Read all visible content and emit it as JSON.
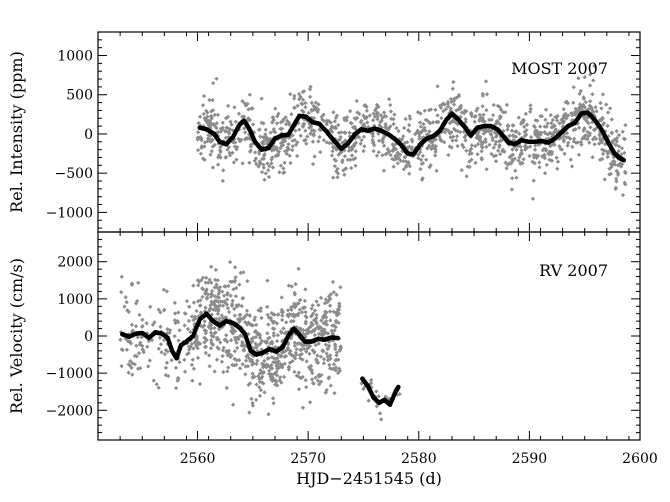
{
  "chart_data": [
    {
      "type": "scatter",
      "annotation": "MOST 2007",
      "ylabel": "Rel. Intensity (ppm)",
      "xlabel": "",
      "xlim": [
        2551,
        2600
      ],
      "ylim": [
        -1250,
        1300
      ],
      "x_ticks": [
        2560,
        2570,
        2580,
        2590,
        2600
      ],
      "y_ticks": [
        -1000,
        -500,
        0,
        500,
        1000
      ],
      "y_tick_labels": [
        "−1000",
        "−500",
        "0",
        "500",
        "1000"
      ],
      "raw_style": {
        "color": "#8c8c8c"
      },
      "smooth_style": {
        "color": "#000000"
      },
      "smooth": [
        [
          2560.2,
          80
        ],
        [
          2560.8,
          60
        ],
        [
          2561.5,
          0
        ],
        [
          2562.0,
          -100
        ],
        [
          2562.6,
          -130
        ],
        [
          2563.2,
          -40
        ],
        [
          2563.8,
          120
        ],
        [
          2564.2,
          170
        ],
        [
          2564.7,
          60
        ],
        [
          2565.2,
          -100
        ],
        [
          2565.8,
          -200
        ],
        [
          2566.4,
          -180
        ],
        [
          2567.0,
          -60
        ],
        [
          2567.6,
          -20
        ],
        [
          2568.2,
          -10
        ],
        [
          2568.7,
          110
        ],
        [
          2569.2,
          230
        ],
        [
          2569.8,
          220
        ],
        [
          2570.4,
          150
        ],
        [
          2571.0,
          130
        ],
        [
          2571.6,
          40
        ],
        [
          2572.3,
          -80
        ],
        [
          2573.0,
          -190
        ],
        [
          2573.6,
          -120
        ],
        [
          2574.2,
          -10
        ],
        [
          2574.8,
          60
        ],
        [
          2575.4,
          40
        ],
        [
          2576.0,
          70
        ],
        [
          2576.6,
          40
        ],
        [
          2577.2,
          0
        ],
        [
          2577.8,
          -60
        ],
        [
          2578.4,
          -140
        ],
        [
          2579.0,
          -250
        ],
        [
          2579.5,
          -260
        ],
        [
          2580.1,
          -140
        ],
        [
          2580.7,
          -60
        ],
        [
          2581.3,
          -30
        ],
        [
          2581.9,
          40
        ],
        [
          2582.5,
          180
        ],
        [
          2583.0,
          260
        ],
        [
          2583.6,
          180
        ],
        [
          2584.2,
          80
        ],
        [
          2584.7,
          -20
        ],
        [
          2585.3,
          80
        ],
        [
          2585.9,
          100
        ],
        [
          2586.5,
          100
        ],
        [
          2587.1,
          60
        ],
        [
          2587.6,
          -20
        ],
        [
          2588.1,
          -110
        ],
        [
          2588.7,
          -130
        ],
        [
          2589.3,
          -80
        ],
        [
          2589.9,
          -100
        ],
        [
          2590.5,
          -100
        ],
        [
          2591.1,
          -90
        ],
        [
          2591.7,
          -110
        ],
        [
          2592.3,
          -60
        ],
        [
          2592.9,
          20
        ],
        [
          2593.5,
          100
        ],
        [
          2594.1,
          140
        ],
        [
          2594.7,
          260
        ],
        [
          2595.3,
          270
        ],
        [
          2595.9,
          180
        ],
        [
          2596.5,
          60
        ],
        [
          2597.1,
          -100
        ],
        [
          2597.7,
          -250
        ],
        [
          2598.2,
          -310
        ],
        [
          2598.6,
          -340
        ]
      ],
      "raw_segments": [
        {
          "x0": 2560.0,
          "x1": 2584.8,
          "n": 900,
          "sigma": 210,
          "seed": 11
        },
        {
          "x0": 2585.0,
          "x1": 2598.7,
          "n": 560,
          "sigma": 200,
          "seed": 23
        }
      ]
    },
    {
      "type": "scatter",
      "annotation": "RV 2007",
      "ylabel": "Rel. Velocity (cm/s)",
      "xlabel": "HJD−2451545 (d)",
      "xlim": [
        2551,
        2600
      ],
      "ylim": [
        -2800,
        2800
      ],
      "x_ticks": [
        2560,
        2570,
        2580,
        2590,
        2600
      ],
      "x_tick_labels": [
        "2560",
        "2570",
        "2580",
        "2590",
        "2600"
      ],
      "y_ticks": [
        -2000,
        -1000,
        0,
        1000,
        2000
      ],
      "y_tick_labels": [
        "−2000",
        "−1000",
        "0",
        "1000",
        "2000"
      ],
      "raw_style": {
        "color": "#8c8c8c"
      },
      "smooth_style": {
        "color": "#000000"
      },
      "smooth": [
        [
          2553.2,
          50
        ],
        [
          2553.8,
          -20
        ],
        [
          2554.4,
          60
        ],
        [
          2555.0,
          80
        ],
        [
          2555.6,
          -50
        ],
        [
          2556.2,
          100
        ],
        [
          2556.8,
          60
        ],
        [
          2557.3,
          -50
        ],
        [
          2557.7,
          -400
        ],
        [
          2558.1,
          -600
        ],
        [
          2558.5,
          -250
        ],
        [
          2559.0,
          -150
        ],
        [
          2559.6,
          0
        ],
        [
          2560.2,
          450
        ],
        [
          2560.8,
          600
        ],
        [
          2561.4,
          400
        ],
        [
          2562.0,
          280
        ],
        [
          2562.6,
          400
        ],
        [
          2563.2,
          350
        ],
        [
          2563.8,
          220
        ],
        [
          2564.3,
          50
        ],
        [
          2564.8,
          -400
        ],
        [
          2565.3,
          -500
        ],
        [
          2565.9,
          -450
        ],
        [
          2566.5,
          -350
        ],
        [
          2567.1,
          -420
        ],
        [
          2567.7,
          -300
        ],
        [
          2568.2,
          0
        ],
        [
          2568.7,
          200
        ],
        [
          2569.2,
          30
        ],
        [
          2569.7,
          -150
        ],
        [
          2570.3,
          -150
        ],
        [
          2570.9,
          -80
        ],
        [
          2571.5,
          -100
        ],
        [
          2572.1,
          -40
        ],
        [
          2572.8,
          -60
        ]
      ],
      "smooth2": [
        [
          2574.9,
          -1150
        ],
        [
          2575.4,
          -1350
        ],
        [
          2575.9,
          -1650
        ],
        [
          2576.4,
          -1800
        ],
        [
          2576.9,
          -1720
        ],
        [
          2577.4,
          -1850
        ],
        [
          2577.9,
          -1500
        ],
        [
          2578.2,
          -1350
        ]
      ],
      "raw_segments": [
        {
          "x0": 2553.0,
          "x1": 2559.6,
          "n": 140,
          "sigma": 650,
          "seed": 31
        },
        {
          "x0": 2559.6,
          "x1": 2573.0,
          "n": 820,
          "sigma": 650,
          "seed": 47
        },
        {
          "x0": 2574.8,
          "x1": 2578.3,
          "n": 26,
          "sigma": 200,
          "seed": 53
        }
      ]
    }
  ]
}
